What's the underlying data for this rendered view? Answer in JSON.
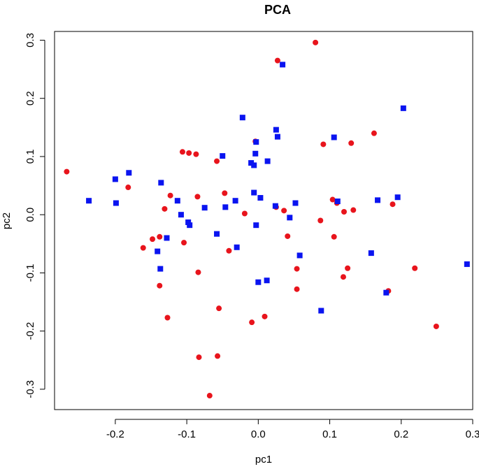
{
  "chart_data": {
    "type": "scatter",
    "title": "PCA",
    "xlabel": "pc1",
    "ylabel": "pc2",
    "xlim": [
      -0.285,
      0.3
    ],
    "ylim": [
      -0.335,
      0.315
    ],
    "xticks": [
      -0.2,
      -0.1,
      0.0,
      0.1,
      0.2,
      0.3
    ],
    "xtick_labels": [
      "-0.2",
      "-0.1",
      "0.0",
      "0.1",
      "0.2",
      "0.3"
    ],
    "yticks": [
      -0.3,
      -0.2,
      -0.1,
      0.0,
      0.1,
      0.2,
      0.3
    ],
    "ytick_labels": [
      "-0.3",
      "-0.2",
      "-0.1",
      "0.0",
      "0.1",
      "0.2",
      "0.3"
    ],
    "grid": false,
    "series": [
      {
        "marker": "circle",
        "color": "#e8141c",
        "points": [
          [
            -0.268,
            0.074
          ],
          [
            -0.182,
            0.047
          ],
          [
            -0.161,
            -0.057
          ],
          [
            -0.148,
            -0.042
          ],
          [
            -0.138,
            -0.038
          ],
          [
            -0.138,
            -0.122
          ],
          [
            -0.131,
            0.01
          ],
          [
            -0.127,
            -0.177
          ],
          [
            -0.123,
            0.033
          ],
          [
            -0.106,
            0.108
          ],
          [
            -0.104,
            -0.048
          ],
          [
            -0.097,
            0.106
          ],
          [
            -0.087,
            0.104
          ],
          [
            -0.085,
            0.031
          ],
          [
            -0.084,
            -0.099
          ],
          [
            -0.083,
            -0.245
          ],
          [
            -0.068,
            -0.311
          ],
          [
            -0.058,
            0.092
          ],
          [
            -0.057,
            -0.243
          ],
          [
            -0.055,
            -0.161
          ],
          [
            -0.047,
            0.037
          ],
          [
            -0.041,
            -0.062
          ],
          [
            -0.019,
            0.002
          ],
          [
            -0.009,
            -0.185
          ],
          [
            -0.004,
            0.126
          ],
          [
            0.009,
            -0.175
          ],
          [
            0.025,
            0.013
          ],
          [
            0.027,
            0.265
          ],
          [
            0.036,
            0.007
          ],
          [
            0.041,
            -0.037
          ],
          [
            0.054,
            -0.093
          ],
          [
            0.054,
            -0.128
          ],
          [
            0.08,
            0.296
          ],
          [
            0.087,
            -0.01
          ],
          [
            0.091,
            0.121
          ],
          [
            0.104,
            0.026
          ],
          [
            0.106,
            -0.038
          ],
          [
            0.11,
            0.02
          ],
          [
            0.119,
            -0.107
          ],
          [
            0.12,
            0.005
          ],
          [
            0.125,
            -0.092
          ],
          [
            0.13,
            0.123
          ],
          [
            0.133,
            0.008
          ],
          [
            0.162,
            0.14
          ],
          [
            0.182,
            -0.131
          ],
          [
            0.188,
            0.018
          ],
          [
            0.219,
            -0.092
          ],
          [
            0.249,
            -0.192
          ]
        ]
      },
      {
        "marker": "square",
        "color": "#0a14f0",
        "points": [
          [
            -0.237,
            0.024
          ],
          [
            -0.2,
            0.061
          ],
          [
            -0.199,
            0.02
          ],
          [
            -0.181,
            0.072
          ],
          [
            -0.141,
            -0.063
          ],
          [
            -0.137,
            -0.093
          ],
          [
            -0.136,
            0.055
          ],
          [
            -0.128,
            -0.04
          ],
          [
            -0.113,
            0.024
          ],
          [
            -0.108,
            0.0
          ],
          [
            -0.098,
            -0.013
          ],
          [
            -0.096,
            -0.018
          ],
          [
            -0.075,
            0.012
          ],
          [
            -0.058,
            -0.033
          ],
          [
            -0.05,
            0.101
          ],
          [
            -0.046,
            0.013
          ],
          [
            -0.032,
            0.024
          ],
          [
            -0.03,
            -0.056
          ],
          [
            -0.022,
            0.167
          ],
          [
            -0.01,
            0.089
          ],
          [
            -0.006,
            0.085
          ],
          [
            -0.006,
            0.038
          ],
          [
            -0.004,
            0.105
          ],
          [
            -0.003,
            0.125
          ],
          [
            -0.003,
            -0.018
          ],
          [
            0.0,
            -0.116
          ],
          [
            0.003,
            0.029
          ],
          [
            0.012,
            -0.113
          ],
          [
            0.013,
            0.092
          ],
          [
            0.024,
            0.015
          ],
          [
            0.025,
            0.146
          ],
          [
            0.027,
            0.134
          ],
          [
            0.034,
            0.258
          ],
          [
            0.044,
            -0.005
          ],
          [
            0.052,
            0.02
          ],
          [
            0.058,
            -0.07
          ],
          [
            0.088,
            -0.165
          ],
          [
            0.106,
            0.133
          ],
          [
            0.111,
            0.023
          ],
          [
            0.158,
            -0.066
          ],
          [
            0.167,
            0.025
          ],
          [
            0.179,
            -0.134
          ],
          [
            0.195,
            0.03
          ],
          [
            0.203,
            0.183
          ],
          [
            0.292,
            -0.085
          ]
        ]
      }
    ]
  }
}
